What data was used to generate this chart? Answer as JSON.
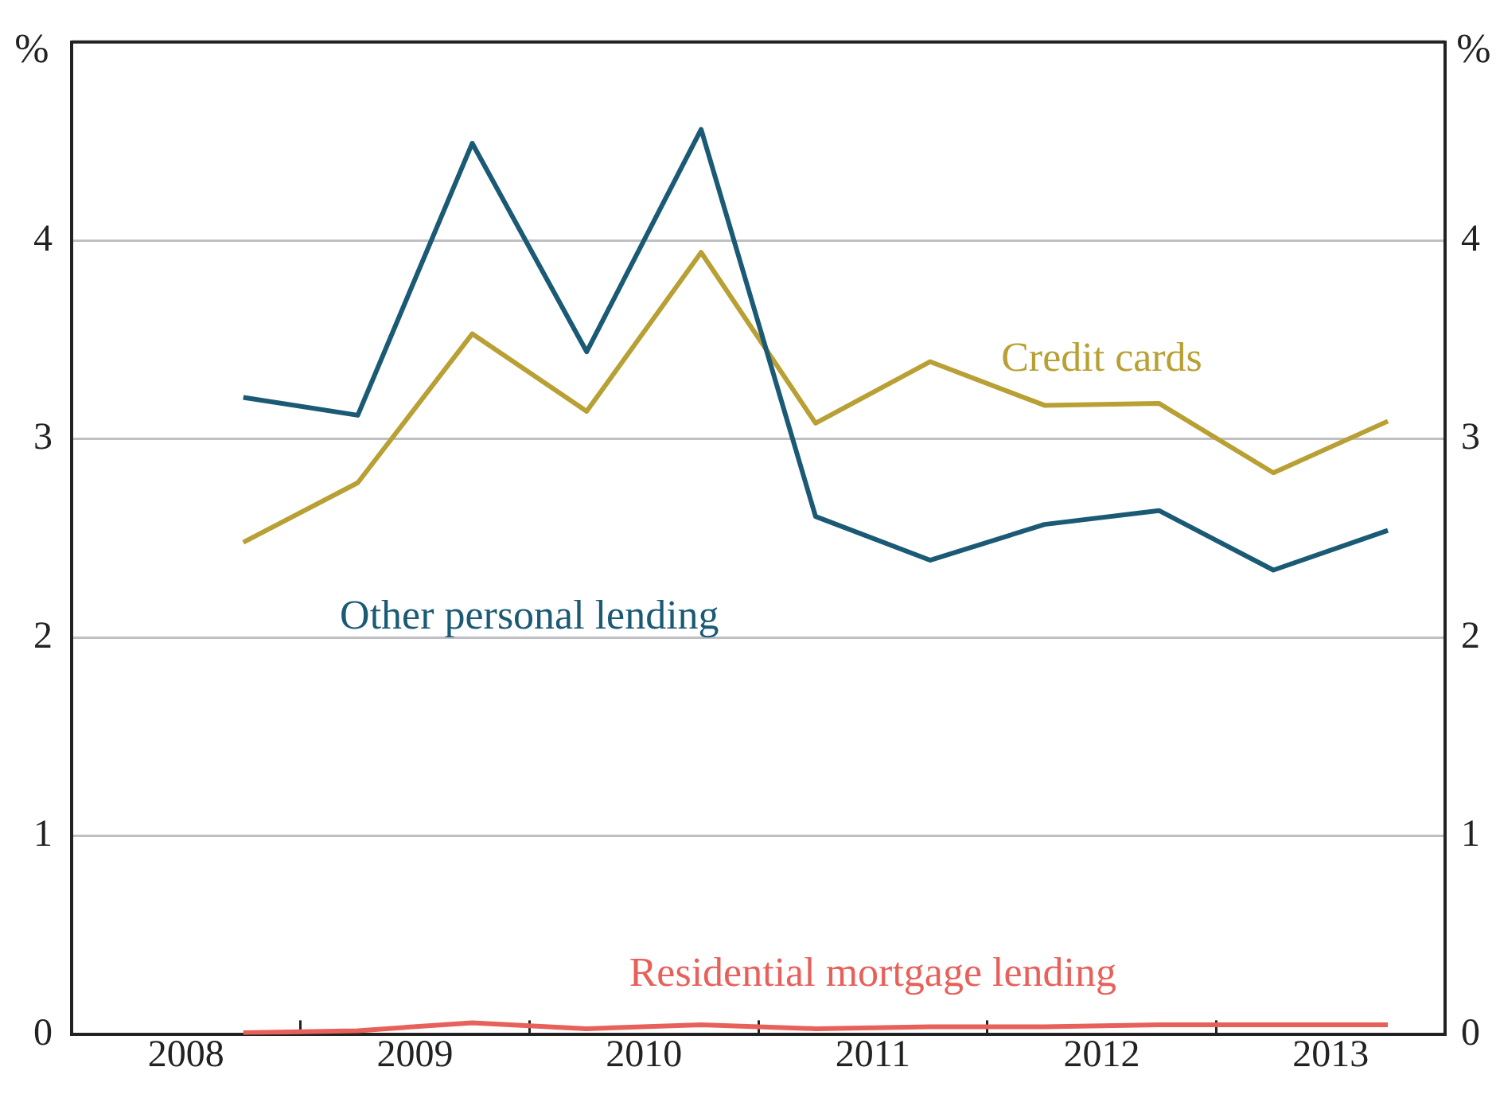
{
  "chart_data": {
    "type": "line",
    "ylabel": "%",
    "y2label": "%",
    "x": [
      2008.75,
      2009.25,
      2009.75,
      2010.25,
      2010.75,
      2011.25,
      2011.75,
      2012.25,
      2012.75,
      2013.25,
      2013.75
    ],
    "xlim": [
      2008,
      2014
    ],
    "xticks": [
      {
        "value": 2008.5,
        "label": "2008"
      },
      {
        "value": 2009,
        "label": null
      },
      {
        "value": 2009.5,
        "label": "2009"
      },
      {
        "value": 2010,
        "label": null
      },
      {
        "value": 2010.5,
        "label": "2010"
      },
      {
        "value": 2011,
        "label": null
      },
      {
        "value": 2011.5,
        "label": "2011"
      },
      {
        "value": 2012,
        "label": null
      },
      {
        "value": 2012.5,
        "label": "2012"
      },
      {
        "value": 2013,
        "label": null
      },
      {
        "value": 2013.5,
        "label": "2013"
      }
    ],
    "ylim": [
      0,
      5
    ],
    "yticks": [
      0,
      1,
      2,
      3,
      4
    ],
    "y2lim": [
      0,
      5
    ],
    "y2ticks": [
      0,
      1,
      2,
      3,
      4
    ],
    "grid": "y",
    "legend": false,
    "marker": "none",
    "line_style": "solid",
    "series": [
      {
        "name": "Other personal lending",
        "color": "#1a5a75",
        "values": [
          3.21,
          3.12,
          4.49,
          3.44,
          4.56,
          2.61,
          2.39,
          2.57,
          2.64,
          2.34,
          2.54
        ]
      },
      {
        "name": "Credit cards",
        "color": "#b8a034",
        "values": [
          2.48,
          2.78,
          3.53,
          3.14,
          3.94,
          3.08,
          3.39,
          3.17,
          3.18,
          2.83,
          3.09
        ]
      },
      {
        "name": "Residential mortgage lending",
        "color": "#e8605a",
        "values": [
          0.01,
          0.02,
          0.06,
          0.03,
          0.05,
          0.03,
          0.04,
          0.04,
          0.05,
          0.05,
          0.05
        ]
      }
    ]
  }
}
